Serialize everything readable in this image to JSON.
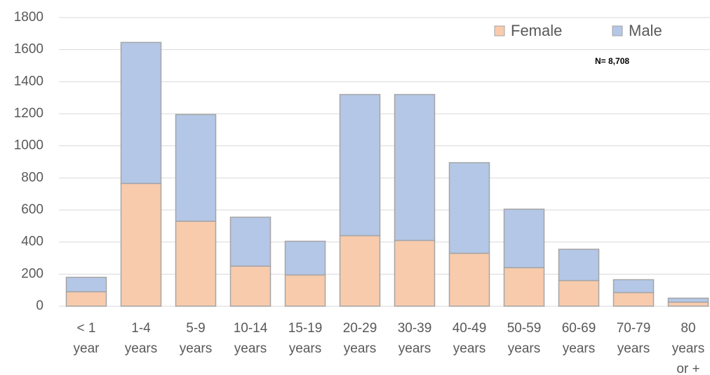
{
  "chart_data": {
    "type": "stacked_bar",
    "annotation": "N= 8,708",
    "categories": [
      "< 1\nyear",
      "1-4\nyears",
      "5-9\nyears",
      "10-14\nyears",
      "15-19\nyears",
      "20-29\nyears",
      "30-39\nyears",
      "40-49\nyears",
      "50-59\nyears",
      "60-69\nyears",
      "70-79\nyears",
      "80\nyears\nor +"
    ],
    "series": [
      {
        "name": "Female",
        "color": "#f8cbad",
        "values": [
          90,
          765,
          530,
          250,
          195,
          440,
          410,
          330,
          240,
          160,
          85,
          25
        ]
      },
      {
        "name": "Male",
        "color": "#b4c7e7",
        "values": [
          90,
          880,
          665,
          305,
          210,
          880,
          910,
          565,
          365,
          195,
          80,
          25
        ]
      }
    ],
    "ylim": [
      0,
      1800
    ],
    "yticks": [
      0,
      200,
      400,
      600,
      800,
      1000,
      1200,
      1400,
      1600,
      1800
    ],
    "grid": true,
    "legend": "top-right"
  }
}
